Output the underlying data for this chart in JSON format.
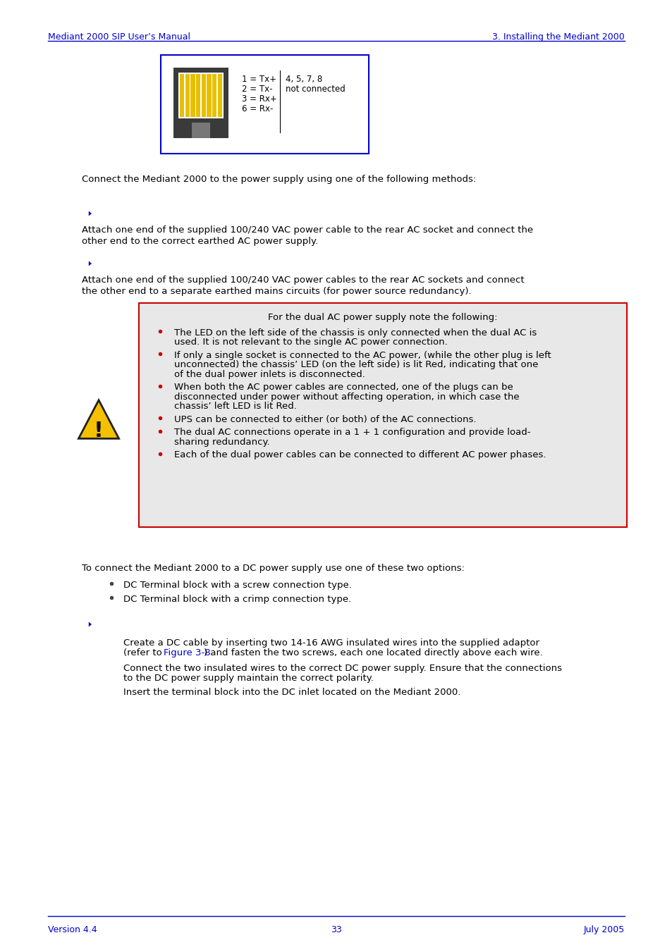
{
  "header_left": "Mediant 2000 SIP User’s Manual",
  "header_right": "3. Installing the Mediant 2000",
  "footer_left": "Version 4.4",
  "footer_center": "33",
  "footer_right": "July 2005",
  "header_color": "#0000cc",
  "bg_color": "#ffffff",
  "warning_title": "For the dual AC power supply note the following:",
  "warning_box_bg": "#e8e8e8",
  "warning_box_border": "#cc0000",
  "bullet_color": "#cc0000",
  "dc_bullet_color": "#333333",
  "arrow_color": "#0000cc",
  "figref_color": "#0000cc",
  "rj45_box_color": "#0000cc",
  "bullet_lines": [
    [
      "The LED on the left side of the chassis is only connected when the dual AC is",
      "used. It is not relevant to the single AC power connection."
    ],
    [
      "If only a single socket is connected to the AC power, (while the other plug is left",
      "unconnected) the chassis’ LED (on the left side) is lit Red, indicating that one",
      "of the dual power inlets is disconnected."
    ],
    [
      "When both the AC power cables are connected, one of the plugs can be",
      "disconnected under power without affecting operation, in which case the",
      "chassis’ left LED is lit Red."
    ],
    [
      "UPS can be connected to either (or both) of the AC connections."
    ],
    [
      "The dual AC connections operate in a 1 + 1 configuration and provide load-",
      "sharing redundancy."
    ],
    [
      "Each of the dual power cables can be connected to different AC power phases."
    ]
  ]
}
